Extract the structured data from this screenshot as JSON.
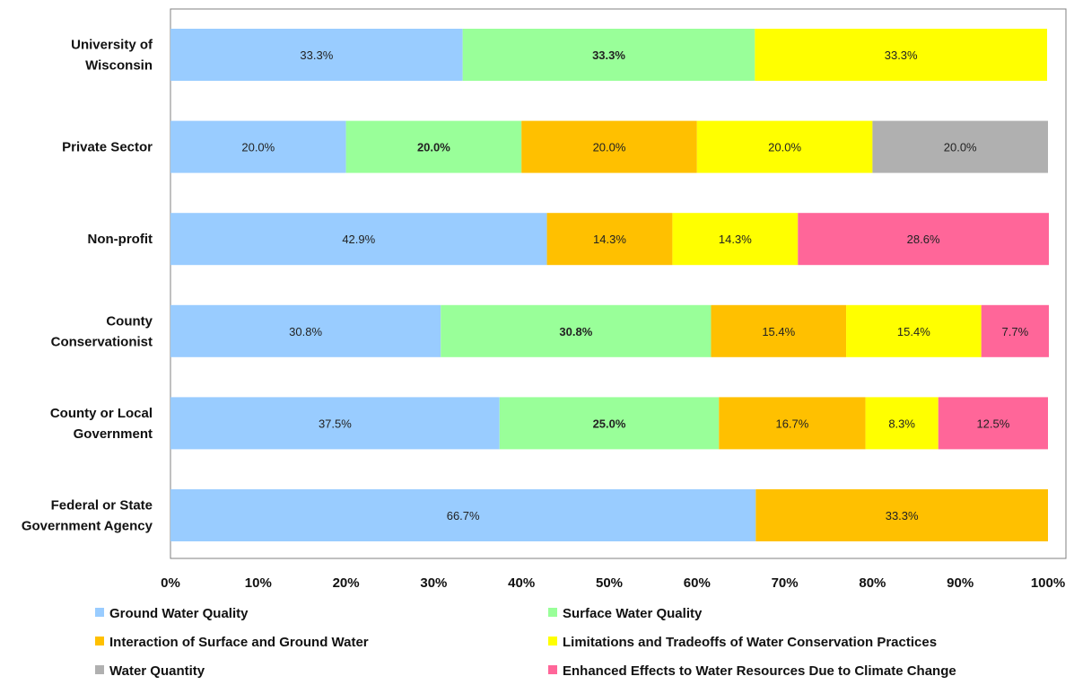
{
  "chart_data": {
    "type": "bar",
    "orientation": "horizontal",
    "stacked": "percent",
    "title": "",
    "xlabel": "",
    "ylabel": "",
    "xlim": [
      0,
      100
    ],
    "x_ticks": [
      "0%",
      "10%",
      "20%",
      "30%",
      "40%",
      "50%",
      "60%",
      "70%",
      "80%",
      "90%",
      "100%"
    ],
    "grid": false,
    "legend_position": "bottom",
    "categories": [
      [
        "University of",
        "Wisconsin"
      ],
      [
        "Private Sector"
      ],
      [
        "Non-profit"
      ],
      [
        "County",
        "Conservationist"
      ],
      [
        "County or Local",
        "Government"
      ],
      [
        "Federal or State",
        "Government Agency"
      ]
    ],
    "series": [
      {
        "name": "Ground Water Quality",
        "color": "#99ccff",
        "bold_labels": false,
        "values": [
          33.3,
          20.0,
          42.9,
          30.8,
          37.5,
          66.7
        ],
        "labels": [
          "33.3%",
          "20.0%",
          "42.9%",
          "30.8%",
          "37.5%",
          "66.7%"
        ]
      },
      {
        "name": "Surface Water Quality",
        "color": "#99ff99",
        "bold_labels": true,
        "values": [
          33.3,
          20.0,
          0,
          30.8,
          25.0,
          0
        ],
        "labels": [
          "33.3%",
          "20.0%",
          "",
          "30.8%",
          "25.0%",
          ""
        ]
      },
      {
        "name": "Interaction of Surface and Ground Water",
        "color": "#ffc000",
        "bold_labels": false,
        "values": [
          0,
          20.0,
          14.3,
          15.4,
          16.7,
          33.3
        ],
        "labels": [
          "",
          "20.0%",
          "14.3%",
          "15.4%",
          "16.7%",
          "33.3%"
        ]
      },
      {
        "name": "Limitations and Tradeoffs of Water Conservation Practices",
        "color": "#ffff00",
        "bold_labels": false,
        "values": [
          33.3,
          20.0,
          14.3,
          15.4,
          8.3,
          0
        ],
        "labels": [
          "33.3%",
          "20.0%",
          "14.3%",
          "15.4%",
          "8.3%",
          ""
        ]
      },
      {
        "name": "Water Quantity",
        "color": "#b0b0b0",
        "bold_labels": false,
        "values": [
          0,
          20.0,
          0,
          0,
          0,
          0
        ],
        "labels": [
          "",
          "20.0%",
          "",
          "",
          "",
          ""
        ]
      },
      {
        "name": "Enhanced Effects to Water Resources Due to Climate Change",
        "color": "#ff6699",
        "bold_labels": false,
        "values": [
          0,
          0,
          28.6,
          7.7,
          12.5,
          0
        ],
        "labels": [
          "",
          "",
          "28.6%",
          "7.7%",
          "12.5%",
          ""
        ]
      }
    ]
  }
}
